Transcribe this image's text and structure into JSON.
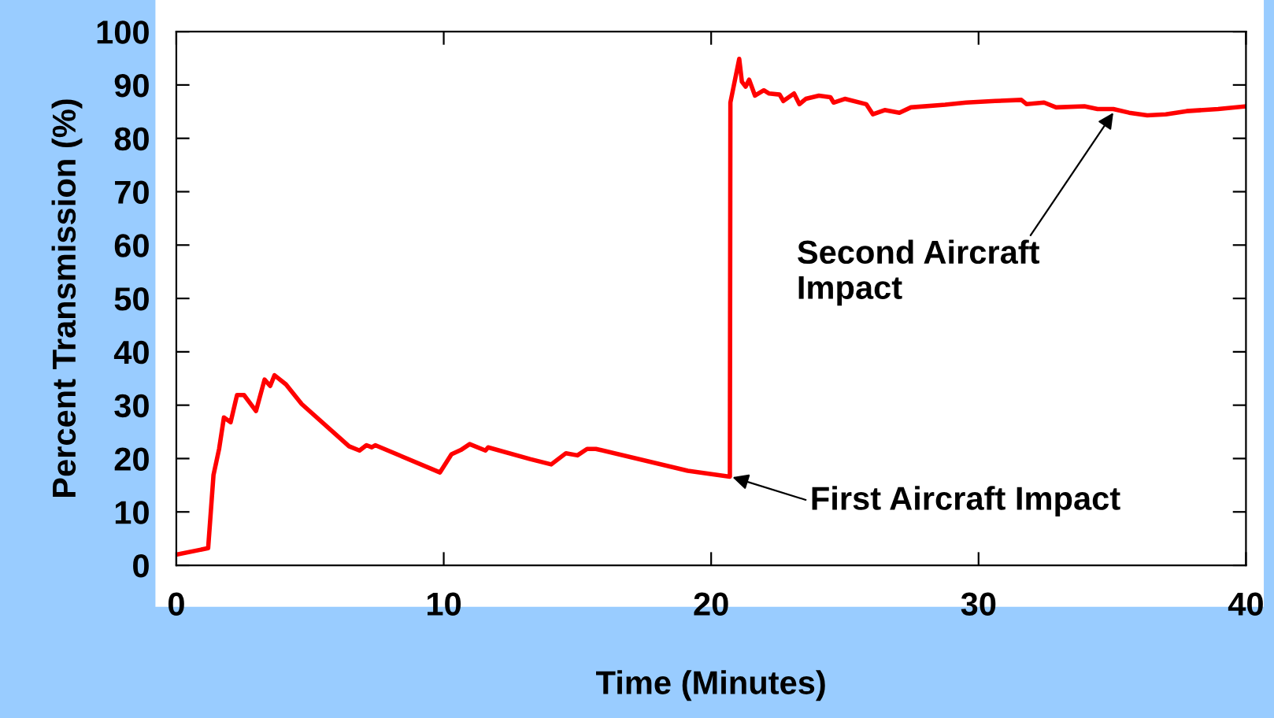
{
  "chart_data": {
    "type": "line",
    "xlabel": "Time (Minutes)",
    "ylabel": "Percent Transmission (%)",
    "xlim": [
      0,
      40
    ],
    "xticks": [
      0,
      10,
      20,
      30,
      40
    ],
    "ylim": [
      0,
      100
    ],
    "yticks": [
      0,
      10,
      20,
      30,
      40,
      50,
      60,
      70,
      80,
      90,
      100
    ],
    "grid": false,
    "legend": false,
    "marker": "none",
    "line_style": "solid",
    "series": [
      {
        "color": "#ff0000",
        "x": [
          0,
          1.19,
          1.39,
          1.6,
          1.78,
          2.03,
          2.27,
          2.53,
          2.98,
          3.3,
          3.51,
          3.67,
          4.1,
          4.69,
          6.46,
          6.85,
          7.11,
          7.31,
          7.44,
          9.86,
          10.29,
          10.64,
          10.97,
          11.56,
          11.66,
          13.23,
          14.02,
          14.57,
          15.0,
          15.36,
          15.69,
          19.13,
          20.7,
          20.72,
          21.05,
          21.15,
          21.29,
          21.42,
          21.64,
          21.97,
          22.17,
          22.56,
          22.7,
          23.1,
          23.3,
          23.54,
          24.03,
          24.46,
          24.58,
          25.0,
          25.8,
          26.05,
          26.49,
          27.04,
          27.47,
          28.75,
          29.54,
          30.62,
          31.6,
          31.8,
          32.45,
          32.9,
          33.96,
          34.45,
          35.04,
          35.63,
          36.31,
          37.0,
          37.78,
          38.96,
          40
        ],
        "values": [
          2.0,
          3.2,
          16.9,
          21.8,
          27.7,
          26.8,
          31.9,
          31.9,
          28.9,
          34.8,
          33.6,
          35.6,
          33.9,
          30.2,
          22.3,
          21.5,
          22.5,
          22.1,
          22.5,
          17.4,
          20.8,
          21.6,
          22.7,
          21.5,
          22.1,
          19.9,
          18.9,
          21.0,
          20.6,
          21.8,
          21.8,
          17.7,
          16.6,
          86.7,
          94.9,
          90.6,
          89.7,
          91.0,
          88.0,
          89.0,
          88.4,
          88.2,
          87.0,
          88.4,
          86.4,
          87.4,
          88.0,
          87.7,
          86.7,
          87.4,
          86.4,
          84.5,
          85.3,
          84.8,
          85.8,
          86.3,
          86.7,
          87.0,
          87.2,
          86.4,
          86.7,
          85.8,
          86.0,
          85.5,
          85.5,
          84.8,
          84.3,
          84.5,
          85.1,
          85.5,
          86.0
        ]
      }
    ],
    "annotations": [
      {
        "text": "Second Aircraft\nImpact",
        "x": 35.04,
        "y": 84.8
      },
      {
        "text": "First Aircraft Impact",
        "x": 20.8,
        "y": 16.5
      }
    ]
  }
}
